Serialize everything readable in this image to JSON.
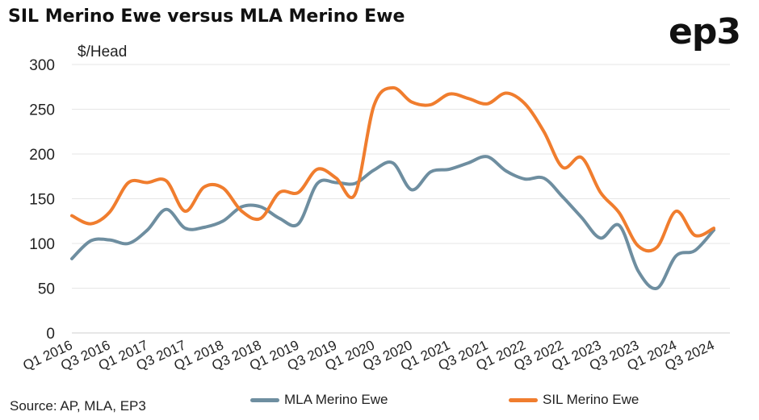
{
  "title": "SIL Merino Ewe versus MLA Merino Ewe",
  "logo": "ep3",
  "source": "Source: AP, MLA, EP3",
  "chart_data": {
    "type": "line",
    "title": "SIL Merino Ewe versus MLA Merino Ewe",
    "ylabel": "$/Head",
    "xlabel": "",
    "ylim": [
      0,
      300
    ],
    "yticks": [
      0,
      50,
      100,
      150,
      200,
      250,
      300
    ],
    "grid": "horizontal",
    "legend_position": "bottom",
    "x_tick_labels": [
      "Q1 2016",
      "Q3 2016",
      "Q1 2017",
      "Q3 2017",
      "Q1 2018",
      "Q3 2018",
      "Q1 2019",
      "Q3 2019",
      "Q1 2020",
      "Q3 2020",
      "Q1 2021",
      "Q3 2021",
      "Q1 2022",
      "Q3 2022",
      "Q1 2023",
      "Q3 2023",
      "Q1 2024",
      "Q3 2024"
    ],
    "x": [
      "Q1 2016",
      "Q2 2016",
      "Q3 2016",
      "Q4 2016",
      "Q1 2017",
      "Q2 2017",
      "Q3 2017",
      "Q4 2017",
      "Q1 2018",
      "Q2 2018",
      "Q3 2018",
      "Q4 2018",
      "Q1 2019",
      "Q2 2019",
      "Q3 2019",
      "Q4 2019",
      "Q1 2020",
      "Q2 2020",
      "Q3 2020",
      "Q4 2020",
      "Q1 2021",
      "Q2 2021",
      "Q3 2021",
      "Q4 2021",
      "Q1 2022",
      "Q2 2022",
      "Q3 2022",
      "Q4 2022",
      "Q1 2023",
      "Q2 2023",
      "Q3 2023",
      "Q4 2023",
      "Q1 2024",
      "Q2 2024",
      "Q3 2024"
    ],
    "series": [
      {
        "name": "MLA Merino Ewe",
        "color": "#6e8ea0",
        "values": [
          83,
          103,
          104,
          100,
          115,
          138,
          117,
          118,
          125,
          141,
          141,
          128,
          122,
          167,
          168,
          167,
          182,
          190,
          160,
          180,
          183,
          190,
          197,
          181,
          172,
          173,
          152,
          129,
          106,
          120,
          69,
          50,
          86,
          92,
          115
        ]
      },
      {
        "name": "SIL Merino Ewe",
        "color": "#f07d2e",
        "values": [
          131,
          122,
          135,
          168,
          168,
          170,
          136,
          163,
          162,
          136,
          128,
          157,
          157,
          183,
          173,
          155,
          254,
          274,
          258,
          255,
          267,
          262,
          256,
          268,
          256,
          225,
          185,
          196,
          157,
          134,
          97,
          96,
          136,
          109,
          117
        ]
      }
    ]
  }
}
